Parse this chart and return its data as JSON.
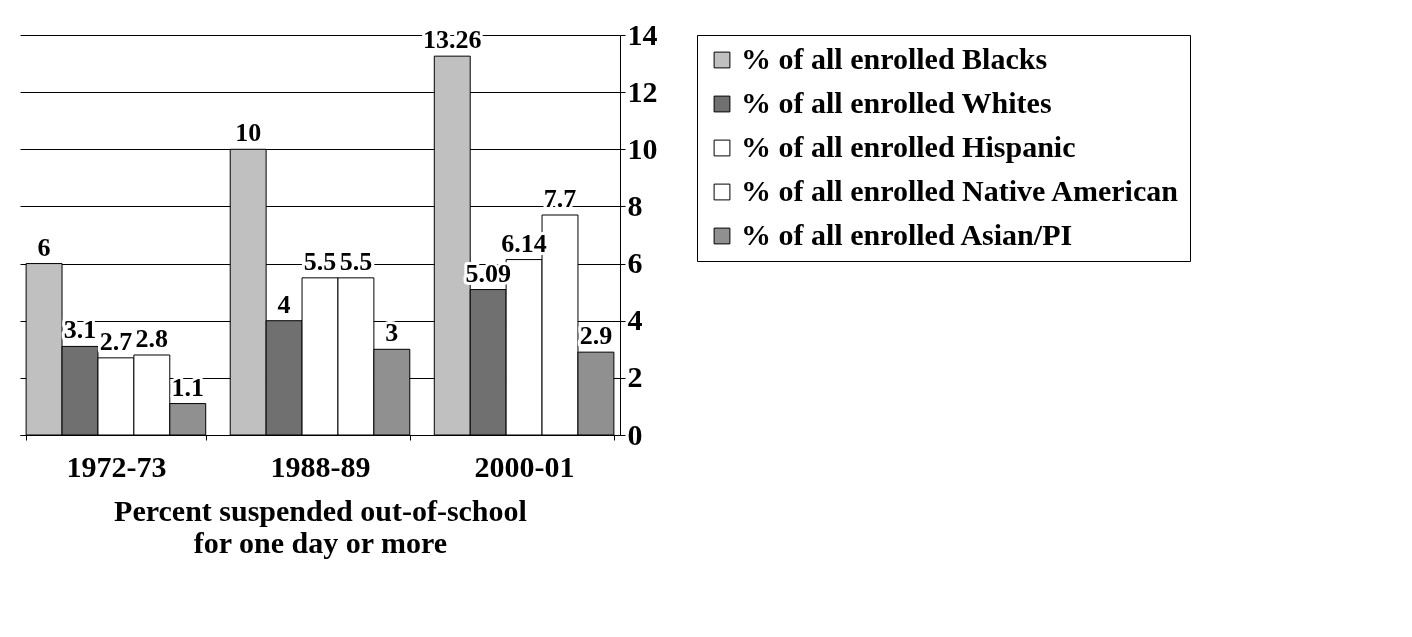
{
  "chart_data": {
    "type": "bar",
    "xlabel": "Percent suspended out-of-school for one day or more",
    "categories": [
      "1972-73",
      "1988-89",
      "2000-01"
    ],
    "series": [
      {
        "name": "% of all enrolled Blacks",
        "color": "#c0c0c0",
        "values": [
          6,
          10,
          13.26
        ]
      },
      {
        "name": "% of all enrolled Whites",
        "color": "#707070",
        "values": [
          3.1,
          4,
          5.09
        ]
      },
      {
        "name": "% of all enrolled Hispanic",
        "color": "#ffffff",
        "values": [
          2.7,
          5.5,
          6.14
        ]
      },
      {
        "name": "% of all enrolled Native American",
        "color": "#ffffff",
        "values": [
          2.8,
          5.5,
          7.7
        ]
      },
      {
        "name": "% of all enrolled Asian/PI",
        "color": "#909090",
        "values": [
          1.1,
          3,
          2.9
        ]
      }
    ],
    "ylim": [
      0,
      14
    ],
    "yticks": [
      0,
      2,
      4,
      6,
      8,
      10,
      12,
      14
    ],
    "grid": "y",
    "legend": "right",
    "data_labels": true
  }
}
